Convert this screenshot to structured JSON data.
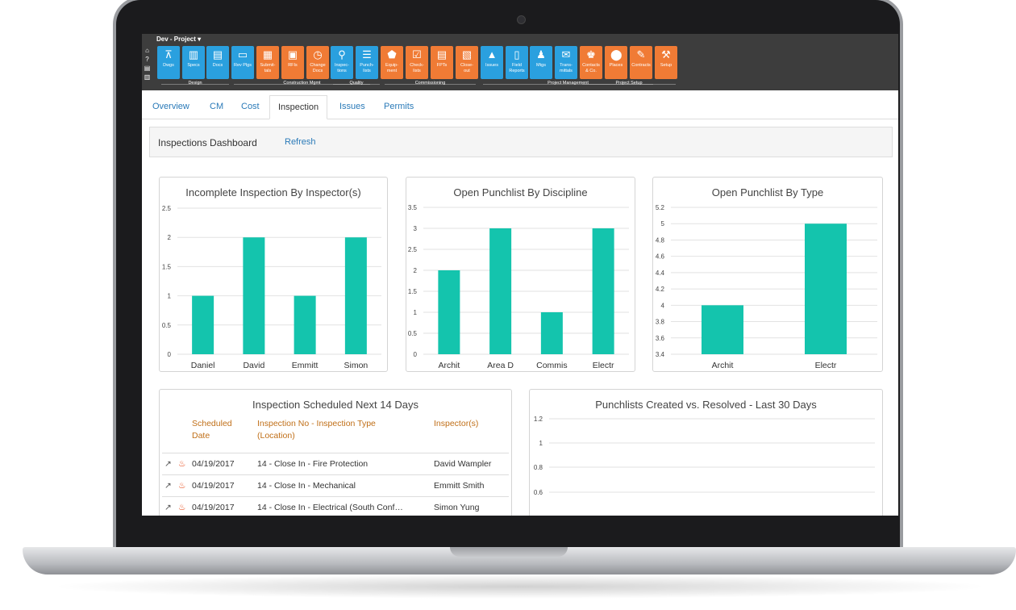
{
  "toolbar": {
    "project": "Dev - Project ▾",
    "buttons": [
      {
        "label": "Dwgs",
        "color": "#2aa0df",
        "icon": "compass-icon"
      },
      {
        "label": "Specs",
        "color": "#2aa0df",
        "icon": "specs-icon"
      },
      {
        "label": "Docs",
        "color": "#2aa0df",
        "icon": "document-icon"
      },
      {
        "label": "Rev Plgs",
        "color": "#2aa0df",
        "icon": "chat-icon"
      },
      {
        "label": "Submit-\ntals",
        "color": "#f07b35",
        "icon": "submittal-icon"
      },
      {
        "label": "RFIs",
        "color": "#f07b35",
        "icon": "rfi-icon"
      },
      {
        "label": "Change\nDocs",
        "color": "#f07b35",
        "icon": "clock-icon"
      },
      {
        "label": "Inspec-\ntions",
        "color": "#2aa0df",
        "icon": "magnifier-icon"
      },
      {
        "label": "Punch-\nlists",
        "color": "#2aa0df",
        "icon": "list-icon"
      },
      {
        "label": "Equip-\nment",
        "color": "#f07b35",
        "icon": "tag-icon"
      },
      {
        "label": "Check-\nlists",
        "color": "#f07b35",
        "icon": "checklist-icon"
      },
      {
        "label": "FPTs",
        "color": "#f07b35",
        "icon": "fpt-icon"
      },
      {
        "label": "Close-\nout",
        "color": "#f07b35",
        "icon": "closeout-icon"
      },
      {
        "label": "Issues",
        "color": "#2aa0df",
        "icon": "warning-icon"
      },
      {
        "label": "Field\nReports",
        "color": "#2aa0df",
        "icon": "phone-icon"
      },
      {
        "label": "Mtgs",
        "color": "#2aa0df",
        "icon": "people-icon"
      },
      {
        "label": "Trans-\nmittals",
        "color": "#2aa0df",
        "icon": "envelope-icon"
      },
      {
        "label": "Contacts\n& Co.",
        "color": "#f07b35",
        "icon": "contacts-icon"
      },
      {
        "label": "Places",
        "color": "#f07b35",
        "icon": "pin-icon"
      },
      {
        "label": "Contracts",
        "color": "#f07b35",
        "icon": "contract-icon"
      },
      {
        "label": "Setup",
        "color": "#f07b35",
        "icon": "tools-icon"
      }
    ],
    "groups": [
      "Design",
      "Construction Mgmt",
      "Quality",
      "Commissioning",
      "Project Management",
      "Project Setup"
    ]
  },
  "tabs": [
    "Overview",
    "CM",
    "Cost",
    "Inspection",
    "Issues",
    "Permits"
  ],
  "active_tab": "Inspection",
  "dashboard": {
    "title": "Inspections Dashboard",
    "refresh": "Refresh"
  },
  "charts": {
    "inspector": {
      "title": "Incomplete Inspection By Inspector(s)",
      "chart_data": {
        "type": "bar",
        "categories": [
          "Daniel",
          "David",
          "Emmitt",
          "Simon"
        ],
        "values": [
          1,
          2,
          1,
          2
        ],
        "ylim": [
          0,
          2.5
        ],
        "yticks": [
          "0",
          "0.5",
          "1",
          "1.5",
          "2",
          "2.5"
        ],
        "color": "#14c4ad"
      }
    },
    "discipline": {
      "title": "Open Punchlist By Discipline",
      "chart_data": {
        "type": "bar",
        "categories": [
          "Archit",
          "Area D",
          "Commis",
          "Electr"
        ],
        "values": [
          2,
          3,
          1,
          3
        ],
        "ylim": [
          0,
          3.5
        ],
        "yticks": [
          "0",
          "0.5",
          "1",
          "1.5",
          "2",
          "2.5",
          "3",
          "3.5"
        ],
        "color": "#14c4ad"
      }
    },
    "type": {
      "title": "Open Punchlist By Type",
      "chart_data": {
        "type": "bar",
        "categories": [
          "Archit",
          "Electr"
        ],
        "values": [
          4,
          5
        ],
        "ylim": [
          3.4,
          5.2
        ],
        "yticks": [
          "3.4",
          "3.6",
          "3.8",
          "4",
          "4.2",
          "4.4",
          "4.6",
          "4.8",
          "5",
          "5.2"
        ],
        "color": "#14c4ad"
      }
    },
    "created": {
      "title": "Punchlists Created vs. Resolved - Last 30 Days",
      "chart_data": {
        "type": "line",
        "yticks": [
          "1.2",
          "1",
          "0.8",
          "0.6"
        ],
        "series": []
      }
    }
  },
  "schedule": {
    "title": "Inspection Scheduled Next 14 Days",
    "headers": [
      "Scheduled\nDate",
      "Inspection No - Inspection Type\n(Location)",
      "Inspector(s)"
    ],
    "rows": [
      {
        "date": "04/19/2017",
        "inspection": "14 - Close In - Fire Protection",
        "inspector": "David Wampler"
      },
      {
        "date": "04/19/2017",
        "inspection": "14 - Close In - Mechanical",
        "inspector": "Emmitt Smith"
      },
      {
        "date": "04/19/2017",
        "inspection": "14 - Close In - Electrical (South Conf…",
        "inspector": "Simon Yung"
      }
    ]
  }
}
